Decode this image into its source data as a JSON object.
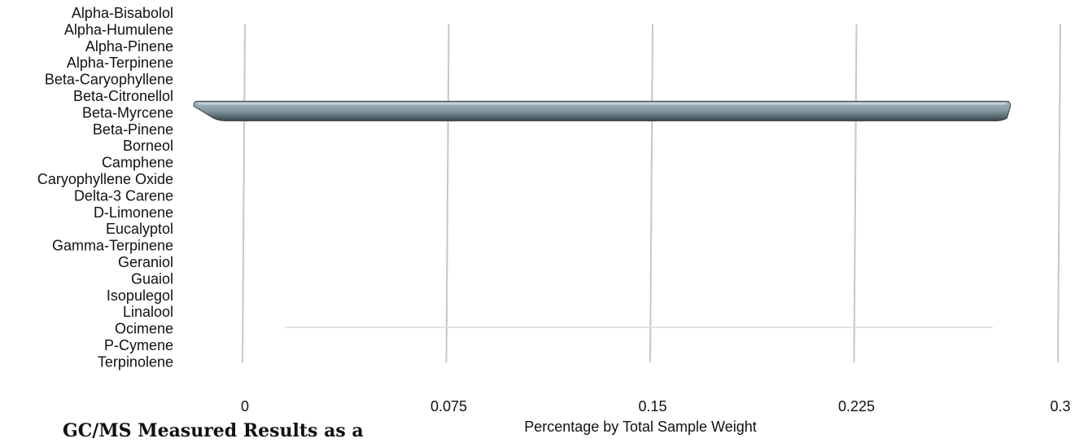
{
  "caption": "GC/MS Measured Results as a",
  "chart_data": {
    "type": "bar",
    "orientation": "horizontal",
    "categories": [
      "Alpha-Bisabolol",
      "Alpha-Humulene",
      "Alpha-Pinene",
      "Alpha-Terpinene",
      "Beta-Caryophyllene",
      "Beta-Citronellol",
      "Beta-Myrcene",
      "Beta-Pinene",
      "Borneol",
      "Camphene",
      "Caryophyllene Oxide",
      "Delta-3 Carene",
      "D-Limonene",
      "Eucalyptol",
      "Gamma-Terpinene",
      "Geraniol",
      "Guaiol",
      "Isopulegol",
      "Linalool",
      "Ocimene",
      "P-Cymene",
      "Terpinolene"
    ],
    "values": [
      0,
      0,
      0,
      0,
      0,
      0,
      0.29,
      0,
      0,
      0,
      0,
      0,
      0,
      0,
      0,
      0,
      0,
      0,
      0,
      0,
      0,
      0
    ],
    "x_ticks": [
      "0",
      "0.075",
      "0.15",
      "0.225",
      "0.3"
    ],
    "xlim": [
      0,
      0.3
    ],
    "xlabel": "Percentage by Total Sample Weight",
    "grid": true,
    "colors": {
      "bar_top": "#9db3bc",
      "bar_front": "#4e5e64",
      "grid": "#c6c6c6"
    }
  }
}
